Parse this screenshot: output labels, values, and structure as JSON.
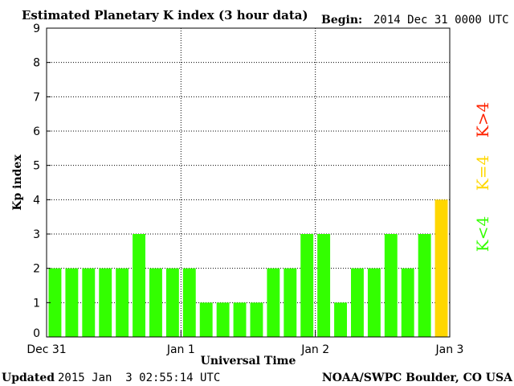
{
  "header": {
    "title": "Estimated Planetary K index (3 hour data)",
    "begin_label": "Begin:",
    "begin_value": "2014 Dec 31 0000 UTC"
  },
  "footer": {
    "updated_label": "Updated",
    "updated_value": "2015 Jan  3 02:55:14 UTC",
    "source": "NOAA/SWPC Boulder, CO USA"
  },
  "legend": {
    "high": "K>4",
    "equal": "K=4",
    "low": "K<4"
  },
  "colors": {
    "low": "#33ff00",
    "equal": "#ffd700",
    "high": "#ff2200"
  },
  "chart_data": {
    "type": "bar",
    "title": "Estimated Planetary K index (3 hour data)",
    "xlabel": "Universal Time",
    "ylabel": "Kp index",
    "ylim": [
      0,
      9
    ],
    "yticks": [
      "0",
      "1",
      "2",
      "3",
      "4",
      "5",
      "6",
      "7",
      "8",
      "9"
    ],
    "xtick_labels": [
      "Dec 31",
      "Jan 1",
      "Jan 2",
      "Jan 3"
    ],
    "grid": true,
    "interval_hours": 3,
    "values": [
      2,
      2,
      2,
      2,
      2,
      3,
      2,
      2,
      2,
      1,
      1,
      1,
      1,
      2,
      2,
      3,
      3,
      1,
      2,
      2,
      3,
      2,
      3,
      4
    ]
  }
}
